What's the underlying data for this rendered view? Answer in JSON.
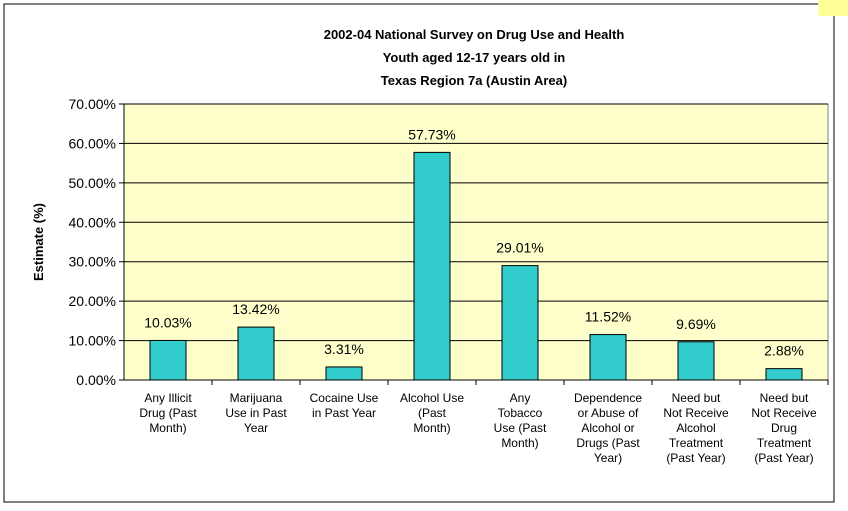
{
  "chart_data": {
    "type": "bar",
    "title": [
      "2002-04 National Survey on Drug Use and Health",
      "Youth aged 12-17 years old in",
      "Texas Region 7a (Austin Area)"
    ],
    "ylabel": "Estimate (%)",
    "xlabel": "",
    "ylim": [
      0,
      70
    ],
    "yticks": [
      "0.00%",
      "10.00%",
      "20.00%",
      "30.00%",
      "40.00%",
      "50.00%",
      "60.00%",
      "70.00%"
    ],
    "categories": [
      "Any Illicit Drug (Past Month)",
      "Marijuana Use in Past Year",
      "Cocaine Use in Past Year",
      "Alcohol Use (Past Month)",
      "Any Tobacco Use (Past Month)",
      "Dependence or Abuse of Alcohol or Drugs (Past Year)",
      "Need but Not Receive Alcohol Treatment (Past Year)",
      "Need but Not Receive Drug Treatment (Past Year)"
    ],
    "category_lines": [
      [
        "Any Illicit",
        "Drug (Past",
        "Month)"
      ],
      [
        "Marijuana",
        "Use in Past",
        "Year"
      ],
      [
        "Cocaine Use",
        "in Past Year"
      ],
      [
        "Alcohol Use",
        "(Past",
        "Month)"
      ],
      [
        "Any",
        "Tobacco",
        "Use (Past",
        "Month)"
      ],
      [
        "Dependence",
        "or Abuse of",
        "Alcohol or",
        "Drugs (Past",
        "Year)"
      ],
      [
        "Need but",
        "Not Receive",
        "Alcohol",
        "Treatment",
        "(Past Year)"
      ],
      [
        "Need but",
        "Not Receive",
        "Drug",
        "Treatment",
        "(Past Year)"
      ]
    ],
    "values": [
      10.03,
      13.42,
      3.31,
      57.73,
      29.01,
      11.52,
      9.69,
      2.88
    ],
    "data_labels": [
      "10.03%",
      "13.42%",
      "3.31%",
      "57.73%",
      "29.01%",
      "11.52%",
      "9.69%",
      "2.88%"
    ],
    "grid": true,
    "legend": "none",
    "colors": {
      "bar": "#33CCCC",
      "plot_bg": "#FFFFCC",
      "grid": "#000000"
    }
  }
}
